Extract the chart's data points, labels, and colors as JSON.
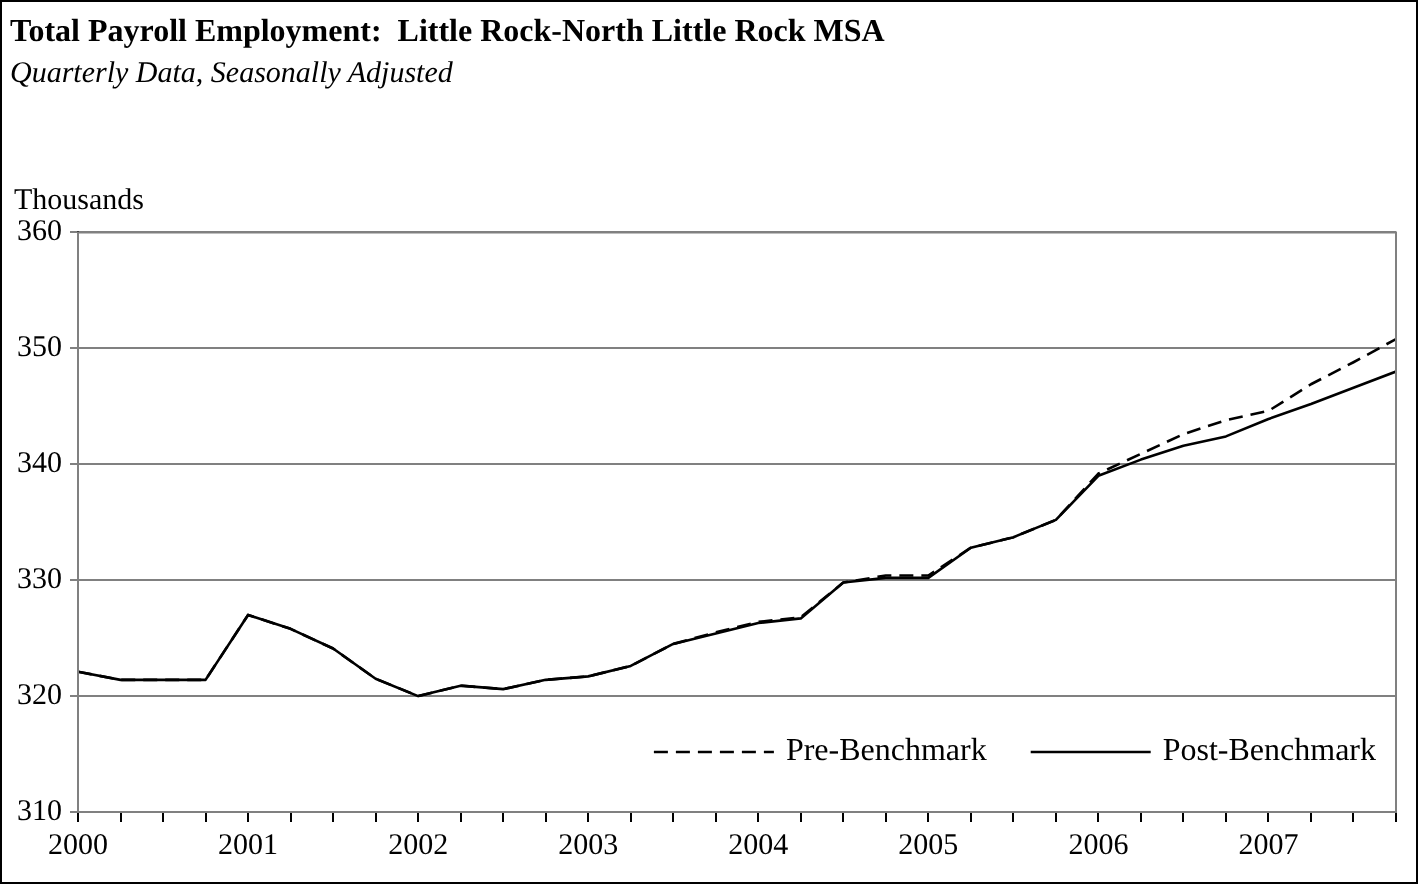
{
  "chart_data": {
    "type": "line",
    "title": "Total Payroll Employment:  Little Rock-North Little Rock MSA",
    "subtitle": "Quarterly Data, Seasonally Adjusted",
    "ylabel": "Thousands",
    "x": [
      2000,
      2000.25,
      2000.5,
      2000.75,
      2001,
      2001.25,
      2001.5,
      2001.75,
      2002,
      2002.25,
      2002.5,
      2002.75,
      2003,
      2003.25,
      2003.5,
      2003.75,
      2004,
      2004.25,
      2004.5,
      2004.75,
      2005,
      2005.25,
      2005.5,
      2005.75,
      2006,
      2006.25,
      2006.5,
      2006.75,
      2007,
      2007.25,
      2007.5,
      2007.75
    ],
    "series": [
      {
        "name": "Pre-Benchmark",
        "color": "#000000",
        "line_style": "dashed",
        "values": [
          322.1,
          321.4,
          321.4,
          321.4,
          327.0,
          325.8,
          324.1,
          321.5,
          320.0,
          320.9,
          320.6,
          321.4,
          321.7,
          322.6,
          324.5,
          325.5,
          326.4,
          326.8,
          329.8,
          330.4,
          330.4,
          332.8,
          333.7,
          335.2,
          339.2,
          340.9,
          342.6,
          343.8,
          344.6,
          346.9,
          348.8,
          350.8
        ]
      },
      {
        "name": "Post-Benchmark",
        "color": "#000000",
        "line_style": "solid",
        "values": [
          322.1,
          321.4,
          321.4,
          321.4,
          327.0,
          325.8,
          324.1,
          321.5,
          320.0,
          320.9,
          320.6,
          321.4,
          321.7,
          322.6,
          324.5,
          325.4,
          326.3,
          326.7,
          329.8,
          330.2,
          330.2,
          332.8,
          333.7,
          335.2,
          339.0,
          340.4,
          341.6,
          342.4,
          343.9,
          345.2,
          346.6,
          348.0
        ]
      }
    ],
    "xlim": [
      2000,
      2007.75
    ],
    "xticks": [
      2000,
      {
        "value": 2000.25,
        "label": null
      },
      {
        "value": 2000.5,
        "label": null
      },
      {
        "value": 2000.75,
        "label": null
      },
      2001,
      {
        "value": 2001.25,
        "label": null
      },
      {
        "value": 2001.5,
        "label": null
      },
      {
        "value": 2001.75,
        "label": null
      },
      2002,
      {
        "value": 2002.25,
        "label": null
      },
      {
        "value": 2002.5,
        "label": null
      },
      {
        "value": 2002.75,
        "label": null
      },
      2003,
      {
        "value": 2003.25,
        "label": null
      },
      {
        "value": 2003.5,
        "label": null
      },
      {
        "value": 2003.75,
        "label": null
      },
      2004,
      {
        "value": 2004.25,
        "label": null
      },
      {
        "value": 2004.5,
        "label": null
      },
      {
        "value": 2004.75,
        "label": null
      },
      2005,
      {
        "value": 2005.25,
        "label": null
      },
      {
        "value": 2005.5,
        "label": null
      },
      {
        "value": 2005.75,
        "label": null
      },
      2006,
      {
        "value": 2006.25,
        "label": null
      },
      {
        "value": 2006.5,
        "label": null
      },
      {
        "value": 2006.75,
        "label": null
      },
      2007,
      {
        "value": 2007.25,
        "label": null
      },
      {
        "value": 2007.5,
        "label": null
      },
      {
        "value": 2007.75,
        "label": null
      }
    ],
    "ylim": [
      310,
      360
    ],
    "yticks": [
      310,
      320,
      330,
      340,
      350,
      360
    ],
    "grid": "y",
    "legend": "bottom right",
    "marker": "none"
  }
}
